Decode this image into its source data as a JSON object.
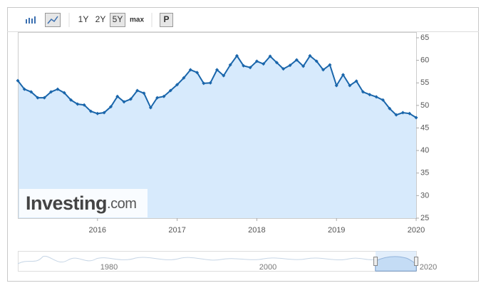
{
  "toolbar": {
    "buttons": [
      "1Y",
      "2Y",
      "5Y",
      "max",
      "P"
    ]
  },
  "watermark": {
    "brand": "Investing",
    "suffix": ".com"
  },
  "navigator": {
    "labels": [
      "1980",
      "2000",
      "2020"
    ]
  },
  "chart_data": {
    "type": "area",
    "x": [
      2015,
      2015.083,
      2015.167,
      2015.25,
      2015.333,
      2015.417,
      2015.5,
      2015.583,
      2015.667,
      2015.75,
      2015.833,
      2015.917,
      2016,
      2016.083,
      2016.167,
      2016.25,
      2016.333,
      2016.417,
      2016.5,
      2016.583,
      2016.667,
      2016.75,
      2016.833,
      2016.917,
      2017,
      2017.083,
      2017.167,
      2017.25,
      2017.333,
      2017.417,
      2017.5,
      2017.583,
      2017.667,
      2017.75,
      2017.833,
      2017.917,
      2018,
      2018.083,
      2018.167,
      2018.25,
      2018.333,
      2018.417,
      2018.5,
      2018.583,
      2018.667,
      2018.75,
      2018.833,
      2018.917,
      2019,
      2019.083,
      2019.167,
      2019.25,
      2019.333,
      2019.417,
      2019.5,
      2019.583,
      2019.667,
      2019.75,
      2019.833,
      2019.917,
      2020
    ],
    "series": [
      {
        "color": "#1a66ab",
        "values": [
          55.5,
          53.6,
          53.0,
          51.7,
          51.7,
          53.0,
          53.6,
          52.8,
          51.2,
          50.3,
          50.1,
          48.7,
          48.2,
          48.4,
          49.7,
          52.0,
          50.8,
          51.4,
          53.3,
          52.7,
          49.5,
          51.7,
          52.0,
          53.3,
          54.6,
          56.1,
          57.9,
          57.3,
          54.9,
          55.0,
          57.9,
          56.6,
          59.0,
          61.0,
          58.8,
          58.4,
          59.8,
          59.2,
          60.9,
          59.5,
          58.1,
          58.9,
          60.1,
          58.7,
          61.0,
          59.8,
          57.9,
          59.0,
          54.4,
          56.8,
          54.4,
          55.4,
          53.0,
          52.4,
          51.9,
          51.2,
          49.3,
          47.9,
          48.4,
          48.2,
          47.3
        ]
      }
    ],
    "fill": "#d7eafc",
    "xlim": [
      2015,
      2020
    ],
    "xticks": [
      2016,
      2017,
      2018,
      2019,
      2020
    ],
    "ylim": [
      25,
      65
    ],
    "yticks": [
      25,
      30,
      35,
      40,
      45,
      50,
      55,
      60,
      65
    ]
  }
}
